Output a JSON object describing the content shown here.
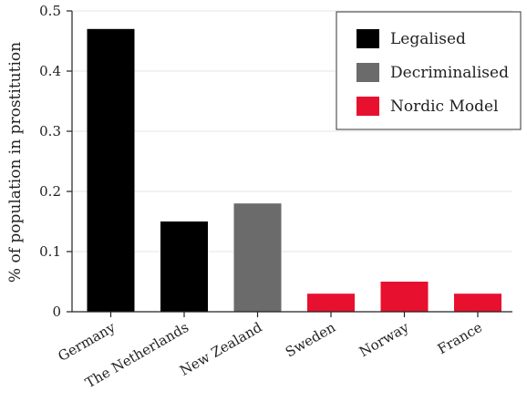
{
  "chart_data": {
    "type": "bar",
    "title": "",
    "xlabel": "",
    "ylabel": "% of population in prostitution",
    "ylim": [
      0,
      0.5
    ],
    "yticks": [
      "0",
      "0.1",
      "0.2",
      "0.3",
      "0.4",
      "0.5"
    ],
    "categories": [
      "Germany",
      "The Netherlands",
      "New Zealand",
      "Sweden",
      "Norway",
      "France"
    ],
    "values": [
      0.47,
      0.15,
      0.18,
      0.03,
      0.05,
      0.03
    ],
    "groups": [
      "Legalised",
      "Legalised",
      "Decriminalised",
      "Nordic Model",
      "Nordic Model",
      "Nordic Model"
    ],
    "grid": true,
    "legend": {
      "position": "top-right",
      "entries": [
        {
          "label": "Legalised",
          "color": "#000000"
        },
        {
          "label": "Decriminalised",
          "color": "#6b6b6b"
        },
        {
          "label": "Nordic Model",
          "color": "#e8102f"
        }
      ]
    }
  }
}
